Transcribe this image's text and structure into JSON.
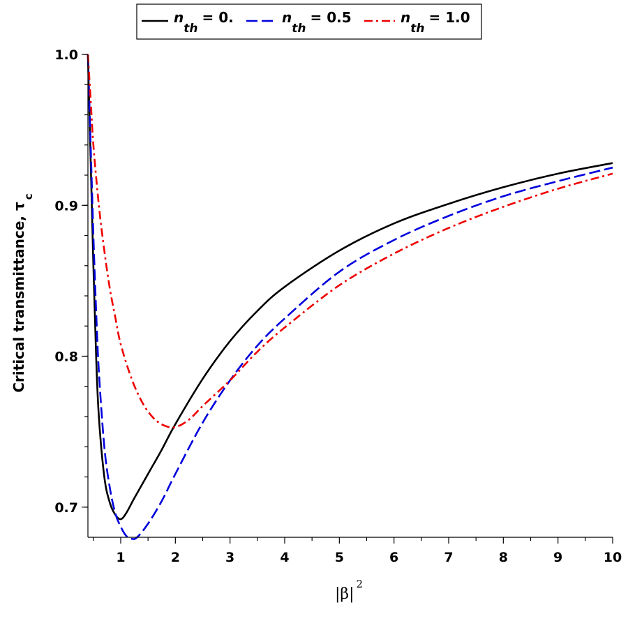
{
  "chart_data": {
    "type": "line",
    "xlabel": "|β|",
    "xlabel_superscript": "2",
    "ylabel": "Critical transmittance, τ",
    "ylabel_subscript": "c",
    "xlim": [
      0.4,
      10
    ],
    "ylim": [
      0.68,
      1.0
    ],
    "xticks": [
      "1",
      "2",
      "3",
      "4",
      "5",
      "6",
      "7",
      "8",
      "9",
      "10"
    ],
    "yticks": [
      "0.7",
      "0.8",
      "0.9",
      "1.0"
    ],
    "grid": false,
    "legend_position": "top",
    "series": [
      {
        "name": "n_th = 0.",
        "legend_symbol": "n",
        "legend_subscript": "th",
        "legend_value": "= 0.",
        "color": "#000000",
        "style": "solid",
        "x": [
          0.4,
          0.45,
          0.5,
          0.55,
          0.6,
          0.7,
          0.8,
          0.9,
          1.0,
          1.1,
          1.25,
          1.5,
          1.75,
          2.0,
          2.5,
          3.0,
          3.5,
          4.0,
          5.0,
          6.0,
          7.0,
          8.0,
          9.0,
          10.0
        ],
        "y": [
          1.0,
          0.93,
          0.86,
          0.8,
          0.76,
          0.72,
          0.703,
          0.695,
          0.692,
          0.696,
          0.706,
          0.722,
          0.738,
          0.755,
          0.785,
          0.81,
          0.83,
          0.846,
          0.87,
          0.888,
          0.901,
          0.912,
          0.921,
          0.928
        ]
      },
      {
        "name": "n_th = 0.5",
        "legend_symbol": "n",
        "legend_subscript": "th",
        "legend_value": "= 0.5",
        "color": "#0000dd",
        "style": "dash",
        "x": [
          0.4,
          0.45,
          0.5,
          0.55,
          0.6,
          0.7,
          0.8,
          0.9,
          1.0,
          1.1,
          1.2,
          1.3,
          1.5,
          1.75,
          2.0,
          2.5,
          3.0,
          3.5,
          4.0,
          5.0,
          6.0,
          7.0,
          8.0,
          9.0,
          10.0
        ],
        "y": [
          1.0,
          0.94,
          0.88,
          0.83,
          0.79,
          0.74,
          0.713,
          0.696,
          0.687,
          0.681,
          0.679,
          0.68,
          0.689,
          0.704,
          0.722,
          0.756,
          0.784,
          0.807,
          0.825,
          0.856,
          0.877,
          0.893,
          0.906,
          0.916,
          0.925
        ]
      },
      {
        "name": "n_th = 1.0",
        "legend_symbol": "n",
        "legend_subscript": "th",
        "legend_value": "= 1.0",
        "color": "#ee0000",
        "style": "dashdot",
        "x": [
          0.4,
          0.45,
          0.5,
          0.6,
          0.7,
          0.8,
          0.9,
          1.0,
          1.2,
          1.4,
          1.6,
          1.8,
          2.0,
          2.25,
          2.5,
          3.0,
          3.5,
          4.0,
          5.0,
          6.0,
          7.0,
          8.0,
          9.0,
          10.0
        ],
        "y": [
          1.0,
          0.97,
          0.94,
          0.9,
          0.87,
          0.845,
          0.826,
          0.808,
          0.785,
          0.769,
          0.759,
          0.754,
          0.753,
          0.758,
          0.767,
          0.784,
          0.803,
          0.819,
          0.847,
          0.868,
          0.885,
          0.899,
          0.911,
          0.921
        ]
      }
    ]
  }
}
